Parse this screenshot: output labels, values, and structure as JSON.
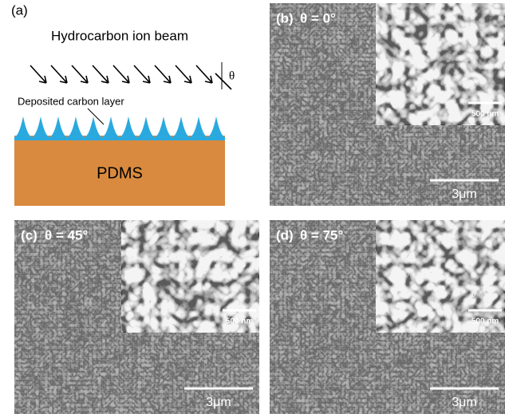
{
  "panel_a": {
    "label": "(a)",
    "beam": "Hydrocarbon ion beam",
    "angle_symbol": "θ",
    "layer": "Deposited carbon layer",
    "substrate": "PDMS"
  },
  "panels": [
    {
      "label": "(b)",
      "angle": "θ = 0°",
      "inset_scale": "500 nm",
      "scale": "3μm"
    },
    {
      "label": "(c)",
      "angle": "θ = 45°",
      "inset_scale": "500 nm",
      "scale": "3μm"
    },
    {
      "label": "(d)",
      "angle": "θ = 75°",
      "inset_scale": "500 nm",
      "scale": "3μm"
    }
  ]
}
